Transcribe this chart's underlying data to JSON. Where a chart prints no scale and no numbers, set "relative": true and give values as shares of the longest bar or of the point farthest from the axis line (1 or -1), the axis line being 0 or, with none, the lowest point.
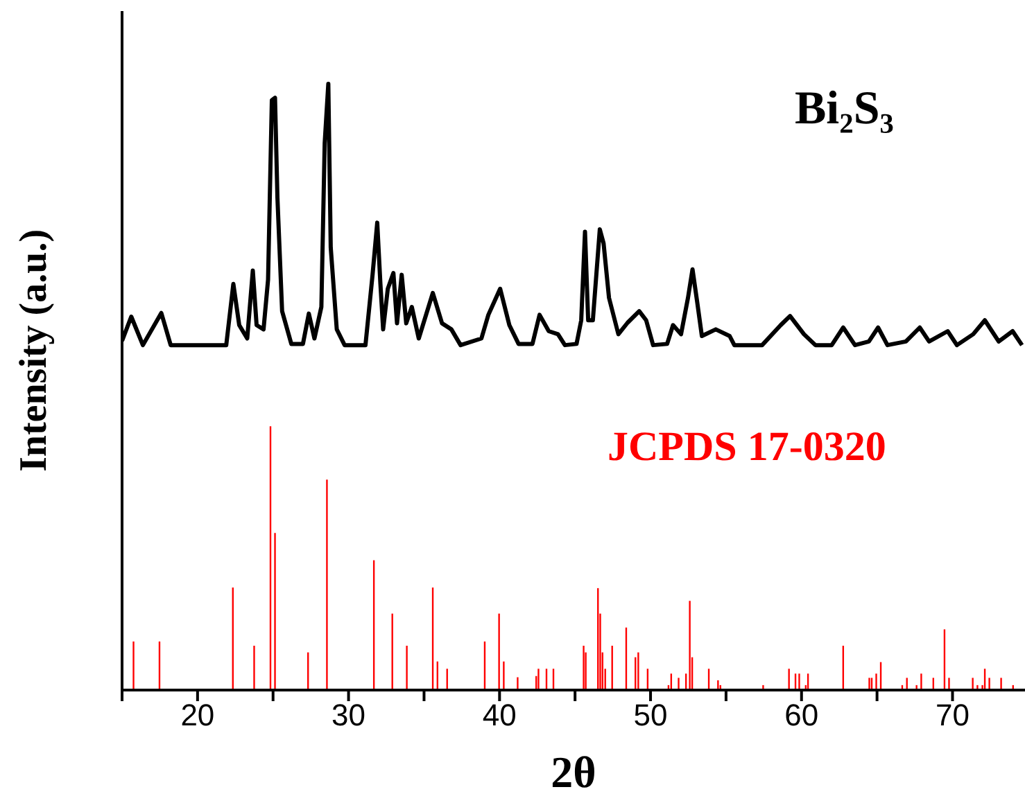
{
  "chart_data": {
    "type": "line",
    "relative": true,
    "xlabel": "2θ",
    "ylabel": "Intensity (a.u.)",
    "xlim": [
      15,
      74.8
    ],
    "xticks": [
      {
        "value": 15,
        "label": null
      },
      20,
      {
        "value": 25,
        "label": null
      },
      30,
      {
        "value": 35,
        "label": null
      },
      40,
      {
        "value": 45,
        "label": null
      },
      50,
      {
        "value": 55,
        "label": null
      },
      60,
      {
        "value": 65,
        "label": null
      },
      70
    ],
    "marker": "none",
    "series": [
      {
        "name": "Bi₂S₃",
        "color": "#000000",
        "x": [
          15.0,
          15.61,
          16.38,
          17.6,
          18.22,
          21.9,
          22.37,
          22.76,
          23.29,
          23.66,
          23.91,
          24.37,
          24.67,
          24.92,
          25.13,
          25.29,
          25.6,
          26.21,
          26.98,
          27.37,
          27.74,
          28.2,
          28.42,
          28.66,
          28.82,
          29.22,
          29.74,
          31.12,
          31.59,
          31.9,
          32.11,
          32.29,
          32.6,
          32.97,
          33.21,
          33.52,
          33.82,
          34.19,
          34.65,
          35.58,
          36.19,
          36.81,
          37.42,
          38.8,
          39.26,
          40.04,
          40.65,
          41.26,
          42.18,
          42.65,
          43.26,
          43.87,
          44.33,
          45.1,
          45.41,
          45.66,
          45.87,
          46.18,
          46.64,
          46.89,
          47.25,
          47.87,
          48.48,
          49.25,
          49.71,
          50.17,
          51.1,
          51.49,
          52.02,
          52.48,
          52.78,
          53.09,
          53.4,
          54.32,
          55.24,
          55.55,
          57.39,
          58.62,
          59.24,
          60.16,
          60.92,
          62.0,
          62.76,
          63.54,
          64.46,
          65.07,
          65.69,
          66.91,
          67.83,
          68.45,
          69.68,
          70.29,
          71.37,
          72.14,
          73.06,
          73.98,
          74.6
        ],
        "values": [
          0.576,
          0.616,
          0.569,
          0.622,
          0.569,
          0.569,
          0.67,
          0.602,
          0.58,
          0.692,
          0.602,
          0.595,
          0.677,
          0.973,
          0.977,
          0.812,
          0.625,
          0.571,
          0.571,
          0.621,
          0.58,
          0.632,
          0.902,
          1.0,
          0.73,
          0.595,
          0.569,
          0.569,
          0.685,
          0.771,
          0.67,
          0.595,
          0.662,
          0.688,
          0.605,
          0.685,
          0.605,
          0.632,
          0.58,
          0.655,
          0.605,
          0.595,
          0.569,
          0.58,
          0.619,
          0.662,
          0.602,
          0.571,
          0.571,
          0.619,
          0.592,
          0.587,
          0.569,
          0.571,
          0.61,
          0.756,
          0.61,
          0.61,
          0.76,
          0.737,
          0.647,
          0.587,
          0.606,
          0.625,
          0.61,
          0.569,
          0.571,
          0.602,
          0.587,
          0.647,
          0.694,
          0.64,
          0.584,
          0.595,
          0.584,
          0.569,
          0.569,
          0.602,
          0.617,
          0.587,
          0.569,
          0.569,
          0.598,
          0.569,
          0.575,
          0.598,
          0.569,
          0.575,
          0.598,
          0.575,
          0.592,
          0.569,
          0.587,
          0.61,
          0.575,
          0.592,
          0.569
        ]
      },
      {
        "name": "JCPDS 17-0320",
        "type": "bar",
        "color": "#ff0000",
        "x": [
          15.76,
          17.48,
          22.34,
          23.75,
          24.83,
          25.13,
          27.32,
          28.57,
          31.68,
          32.9,
          33.86,
          35.58,
          35.89,
          36.53,
          39.02,
          39.97,
          40.28,
          41.2,
          42.43,
          42.58,
          43.11,
          43.57,
          45.57,
          45.71,
          46.52,
          46.67,
          46.82,
          47.0,
          47.46,
          48.39,
          49.0,
          49.19,
          49.81,
          51.19,
          51.37,
          51.86,
          52.35,
          52.6,
          52.76,
          53.86,
          54.47,
          54.63,
          57.46,
          59.17,
          59.6,
          59.85,
          60.28,
          60.43,
          62.76,
          64.49,
          64.65,
          64.95,
          65.25,
          66.67,
          66.98,
          67.62,
          67.93,
          68.73,
          69.47,
          69.77,
          71.34,
          71.65,
          71.98,
          72.14,
          72.44,
          73.22,
          74.01
        ],
        "values": [
          0.079,
          0.079,
          0.168,
          0.072,
          0.434,
          0.258,
          0.061,
          0.346,
          0.213,
          0.125,
          0.072,
          0.168,
          0.046,
          0.034,
          0.079,
          0.125,
          0.046,
          0.02,
          0.022,
          0.034,
          0.034,
          0.034,
          0.072,
          0.061,
          0.167,
          0.125,
          0.061,
          0.034,
          0.072,
          0.102,
          0.053,
          0.061,
          0.034,
          0.007,
          0.026,
          0.019,
          0.026,
          0.146,
          0.053,
          0.034,
          0.015,
          0.007,
          0.007,
          0.034,
          0.026,
          0.026,
          0.007,
          0.026,
          0.072,
          0.019,
          0.019,
          0.026,
          0.045,
          0.007,
          0.019,
          0.007,
          0.026,
          0.019,
          0.099,
          0.019,
          0.019,
          0.007,
          0.007,
          0.034,
          0.019,
          0.019,
          0.007
        ]
      }
    ]
  }
}
